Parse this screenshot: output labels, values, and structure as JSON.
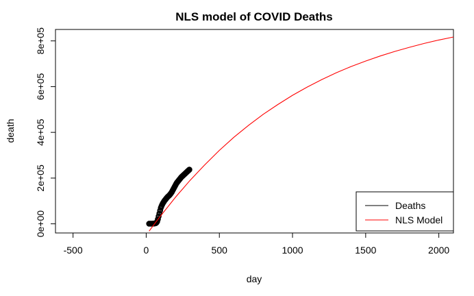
{
  "chart_data": {
    "type": "line",
    "title": "NLS model of COVID Deaths",
    "xlabel": "day",
    "ylabel": "death",
    "xlim": [
      -620,
      2100
    ],
    "ylim": [
      -40000,
      850000
    ],
    "x_ticks": [
      -500,
      0,
      500,
      1000,
      1500,
      2000
    ],
    "x_tick_labels": [
      "-500",
      "0",
      "500",
      "1000",
      "1500",
      "2000"
    ],
    "y_ticks": [
      0,
      200000,
      400000,
      600000,
      800000
    ],
    "y_tick_labels": [
      "0e+00",
      "2e+05",
      "4e+05",
      "6e+05",
      "8e+05"
    ],
    "legend_position": "bottom-right",
    "series": [
      {
        "name": "Deaths",
        "kind": "points",
        "color": "#000000",
        "x": [
          20,
          30,
          40,
          50,
          55,
          60,
          65,
          70,
          75,
          80,
          85,
          90,
          95,
          100,
          105,
          110,
          115,
          120,
          125,
          130,
          135,
          140,
          145,
          150,
          155,
          160,
          165,
          170,
          175,
          180,
          185,
          190,
          195,
          200,
          205,
          210,
          215,
          220,
          225,
          230,
          235,
          240,
          245,
          250,
          255,
          260,
          265,
          270,
          275,
          280,
          285,
          290,
          295
        ],
        "y": [
          500,
          500,
          600,
          900,
          1200,
          2000,
          3000,
          5000,
          10000,
          20000,
          33000,
          45000,
          58000,
          70000,
          78000,
          85000,
          91000,
          96000,
          101000,
          105000,
          109000,
          113000,
          117000,
          120000,
          123000,
          126000,
          130000,
          134000,
          139000,
          145000,
          151000,
          157000,
          163000,
          169000,
          175000,
          180000,
          184000,
          188000,
          192000,
          196000,
          200000,
          204000,
          207000,
          210000,
          213000,
          216000,
          219000,
          222000,
          225000,
          228000,
          231000,
          234000,
          237000
        ]
      },
      {
        "name": "NLS Model",
        "kind": "line",
        "color": "#ff0000",
        "x": [
          20,
          50,
          75,
          100,
          125,
          150,
          175,
          200,
          225,
          250,
          275,
          300,
          350,
          400,
          500,
          600,
          700,
          800,
          900,
          1000,
          1100,
          1200,
          1300,
          1400,
          1500,
          1600,
          1700,
          1800,
          1900,
          2000,
          2100
        ],
        "y": [
          -32000,
          -6000,
          15000,
          36000,
          56000,
          76000,
          96000,
          116000,
          135000,
          153000,
          172000,
          190000,
          224000,
          258000,
          321000,
          379000,
          431000,
          479000,
          522000,
          562000,
          598000,
          631000,
          661000,
          688000,
          712000,
          734000,
          754000,
          772000,
          789000,
          804000,
          817000
        ]
      }
    ]
  }
}
